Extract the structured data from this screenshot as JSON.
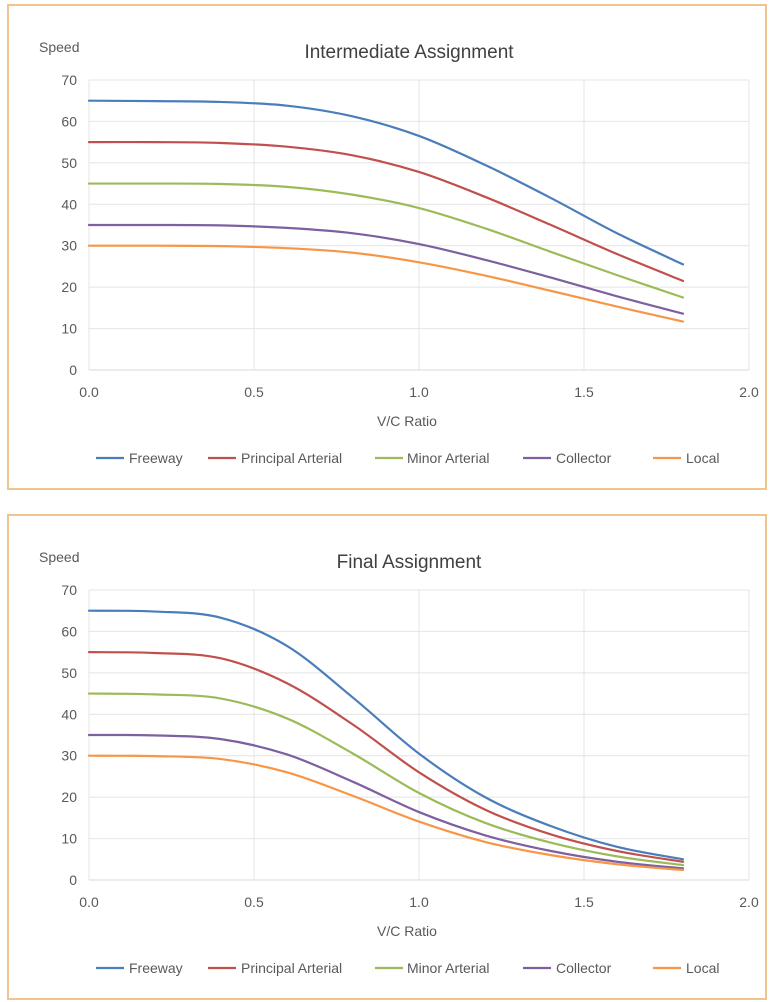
{
  "chart_data": [
    {
      "type": "line",
      "title": "Intermediate Assignment",
      "ylabel": "Speed",
      "xlabel": "V/C Ratio",
      "xlim": [
        0,
        2
      ],
      "ylim": [
        0,
        70
      ],
      "xticks": [
        "0.0",
        "0.5",
        "1.0",
        "1.5",
        "2.0"
      ],
      "yticks": [
        "0",
        "10",
        "20",
        "30",
        "40",
        "50",
        "60",
        "70"
      ],
      "grid": true,
      "legend_position": "bottom",
      "x": [
        0.0,
        0.2,
        0.4,
        0.6,
        0.8,
        1.0,
        1.2,
        1.4,
        1.6,
        1.8
      ],
      "series": [
        {
          "name": "Freeway",
          "color": "#4a7ebb",
          "values": [
            65,
            64.9,
            64.7,
            63.8,
            61.2,
            56.5,
            49.5,
            41.5,
            33,
            25.5
          ]
        },
        {
          "name": "Principal Arterial",
          "color": "#c0504d",
          "values": [
            55,
            55,
            54.8,
            53.9,
            51.8,
            47.8,
            41.8,
            35,
            28,
            21.5
          ]
        },
        {
          "name": "Minor Arterial",
          "color": "#9bbb59",
          "values": [
            45,
            45,
            44.9,
            44.2,
            42.3,
            39.1,
            34.2,
            28.5,
            22.9,
            17.5
          ]
        },
        {
          "name": "Collector",
          "color": "#7d60a0",
          "values": [
            35,
            35,
            34.9,
            34.3,
            33,
            30.4,
            26.6,
            22.3,
            17.8,
            13.6
          ]
        },
        {
          "name": "Local",
          "color": "#f79646",
          "values": [
            30,
            30,
            29.9,
            29.4,
            28.3,
            26,
            22.8,
            19.1,
            15.3,
            11.7
          ]
        }
      ]
    },
    {
      "type": "line",
      "title": "Final Assignment",
      "ylabel": "Speed",
      "xlabel": "V/C Ratio",
      "xlim": [
        0,
        2
      ],
      "ylim": [
        0,
        70
      ],
      "xticks": [
        "0.0",
        "0.5",
        "1.0",
        "1.5",
        "2.0"
      ],
      "yticks": [
        "0",
        "10",
        "20",
        "30",
        "40",
        "50",
        "60",
        "70"
      ],
      "grid": true,
      "legend_position": "bottom",
      "x": [
        0.0,
        0.2,
        0.4,
        0.6,
        0.8,
        1.0,
        1.2,
        1.4,
        1.6,
        1.8
      ],
      "series": [
        {
          "name": "Freeway",
          "color": "#4a7ebb",
          "values": [
            65,
            64.8,
            63.3,
            56.5,
            44,
            30.5,
            20,
            13,
            8,
            5
          ]
        },
        {
          "name": "Principal Arterial",
          "color": "#c0504d",
          "values": [
            55,
            54.8,
            53.5,
            47.5,
            37.5,
            26,
            17,
            11,
            7,
            4.4
          ]
        },
        {
          "name": "Minor Arterial",
          "color": "#9bbb59",
          "values": [
            45,
            44.8,
            43.8,
            39,
            30.5,
            21,
            13.8,
            9,
            5.7,
            3.6
          ]
        },
        {
          "name": "Collector",
          "color": "#7d60a0",
          "values": [
            35,
            34.9,
            34,
            30.3,
            23.7,
            16.4,
            10.8,
            7,
            4.4,
            2.8
          ]
        },
        {
          "name": "Local",
          "color": "#f79646",
          "values": [
            30,
            29.9,
            29.2,
            26,
            20.3,
            14.1,
            9.2,
            6,
            3.8,
            2.4
          ]
        }
      ]
    }
  ]
}
